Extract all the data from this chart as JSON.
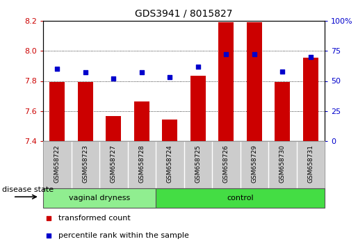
{
  "title": "GDS3941 / 8015827",
  "samples": [
    "GSM658722",
    "GSM658723",
    "GSM658727",
    "GSM658728",
    "GSM658724",
    "GSM658725",
    "GSM658726",
    "GSM658729",
    "GSM658730",
    "GSM658731"
  ],
  "transformed_count": [
    7.795,
    7.795,
    7.565,
    7.665,
    7.545,
    7.835,
    8.19,
    8.19,
    7.795,
    7.955
  ],
  "percentile_rank": [
    60,
    57,
    52,
    57,
    53,
    62,
    72,
    72,
    58,
    70
  ],
  "y_min": 7.4,
  "y_max": 8.2,
  "y_ticks": [
    7.4,
    7.6,
    7.8,
    8.0,
    8.2
  ],
  "y_right_ticks": [
    0,
    25,
    50,
    75,
    100
  ],
  "bar_color": "#cc0000",
  "dot_color": "#0000cc",
  "bar_width": 0.55,
  "group_configs": [
    {
      "start": 0,
      "end": 3,
      "label": "vaginal dryness",
      "color": "#90ee90"
    },
    {
      "start": 4,
      "end": 9,
      "label": "control",
      "color": "#44dd44"
    }
  ],
  "group_label_prefix": "disease state",
  "legend_items": [
    {
      "label": "transformed count",
      "color": "#cc0000"
    },
    {
      "label": "percentile rank within the sample",
      "color": "#0000cc"
    }
  ],
  "bg_color": "#ffffff",
  "plot_bg_color": "#ffffff",
  "grid_color": "#000000",
  "tick_label_color_left": "#cc0000",
  "tick_label_color_right": "#0000cc",
  "title_color": "#000000",
  "sample_bg_color": "#cccccc",
  "sample_border_color": "#999999"
}
